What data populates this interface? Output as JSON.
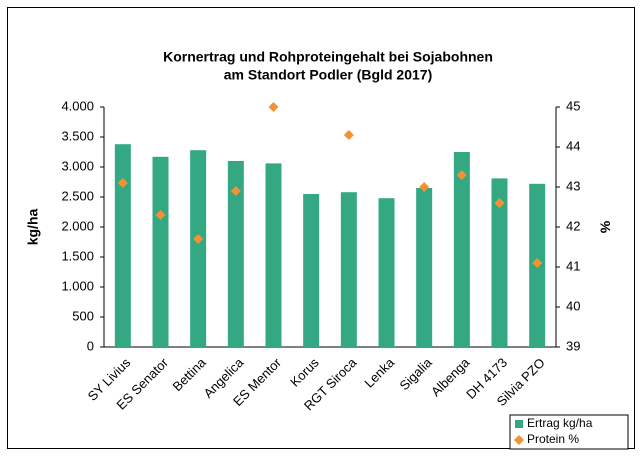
{
  "chart_data": {
    "type": "bar",
    "title": [
      "Kornertrag und Rohproteingehalt bei Sojabohnen",
      "am Standort Podler (Bgld 2017)"
    ],
    "y_label": "kg/ha",
    "y2_label": "%",
    "categories": [
      "SY Livius",
      "ES Senator",
      "Bettina",
      "Angelica",
      "ES Mentor",
      "Korus",
      "RGT Siroca",
      "Lenka",
      "Sigalia",
      "Albenga",
      "DH 4173",
      "Silvia PZO"
    ],
    "series": [
      {
        "name": "Ertrag kg/ha",
        "type": "bar",
        "color": "#33a883",
        "values": [
          3380,
          3170,
          3280,
          3100,
          3060,
          2550,
          2580,
          2480,
          2650,
          3250,
          2810,
          2720
        ]
      },
      {
        "name": "Protein %",
        "type": "scatter",
        "axis": "y2",
        "color": "#f39234",
        "values": [
          43.1,
          42.3,
          41.7,
          42.9,
          45,
          null,
          44.3,
          null,
          43.0,
          43.3,
          42.6,
          41.1
        ]
      }
    ],
    "ylim": [
      0,
      4000
    ],
    "yticks": [
      0,
      500,
      {
        "value": 1000,
        "label": "1.000"
      },
      {
        "value": 1500,
        "label": "1.500"
      },
      {
        "value": 2000,
        "label": "2.000"
      },
      {
        "value": 2500,
        "label": "2.500"
      },
      {
        "value": 3000,
        "label": "3.000"
      },
      {
        "value": 3500,
        "label": "3.500"
      },
      {
        "value": 4000,
        "label": "4.000"
      }
    ],
    "y2lim": [
      39,
      45
    ],
    "y2ticks": [
      39,
      40,
      41,
      42,
      43,
      44,
      45
    ],
    "grid": false,
    "legend": "bottom-right"
  }
}
